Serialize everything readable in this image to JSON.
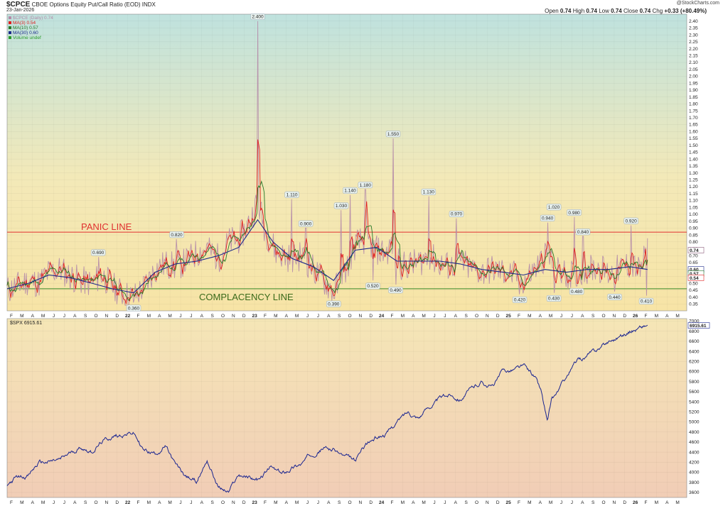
{
  "header": {
    "symbol": "$CPCE",
    "description": "CBOE Options Equity Put/Call Ratio (EOD)",
    "exchange": "INDX",
    "date": "23-Jan-2026",
    "copyright": "@StockCharts.com",
    "open_label": "Open",
    "open": "0.74",
    "high_label": "High",
    "high": "0.74",
    "low_label": "Low",
    "low": "0.74",
    "close_label": "Close",
    "close": "0.74",
    "chg_label": "Chg",
    "chg": "+0.33 (+80.49%)"
  },
  "chart_data": [
    {
      "type": "line",
      "title": "$CPCE CBOE Options Equity Put/Call Ratio (EOD)",
      "ylim": [
        0.3,
        2.45
      ],
      "y_ticks": [
        "0.35",
        "0.40",
        "0.45",
        "0.50",
        "0.55",
        "0.60",
        "0.65",
        "0.70",
        "0.75",
        "0.80",
        "0.85",
        "0.90",
        "0.95",
        "1.00",
        "1.05",
        "1.10",
        "1.15",
        "1.20",
        "1.25",
        "1.30",
        "1.35",
        "1.40",
        "1.45",
        "1.50",
        "1.55",
        "1.60",
        "1.65",
        "1.70",
        "1.75",
        "1.80",
        "1.85",
        "1.90",
        "1.95",
        "2.00",
        "2.05",
        "2.10",
        "2.15",
        "2.20",
        "2.25",
        "2.30",
        "2.35",
        "2.40"
      ],
      "x_ticks": [
        "F",
        "M",
        "A",
        "M",
        "J",
        "J",
        "A",
        "S",
        "O",
        "N",
        "D",
        "22",
        "F",
        "M",
        "A",
        "M",
        "J",
        "J",
        "A",
        "S",
        "O",
        "N",
        "D",
        "23",
        "F",
        "M",
        "A",
        "M",
        "J",
        "J",
        "A",
        "S",
        "O",
        "N",
        "D",
        "24",
        "F",
        "M",
        "A",
        "M",
        "J",
        "J",
        "A",
        "S",
        "O",
        "N",
        "D",
        "25",
        "F",
        "M",
        "A",
        "M",
        "J",
        "J",
        "A",
        "S",
        "O",
        "N",
        "D",
        "26",
        "F",
        "M",
        "A",
        "M"
      ],
      "x_range": [
        2021.0,
        2026.37
      ],
      "legend": [
        {
          "label": "$CPCE (Daily) 0.74",
          "color": "#b48aa8"
        },
        {
          "label": "MA(3) 0.54",
          "color": "#e02020"
        },
        {
          "label": "MA(10) 0.57",
          "color": "#2a7a2a"
        },
        {
          "label": "MA(30) 0.60",
          "color": "#1c2a8a"
        },
        {
          "label": "Volume undef",
          "color": "#2a9a2a"
        }
      ],
      "horizontal_lines": [
        {
          "name": "PANIC LINE",
          "value": 0.87,
          "color": "#e03030"
        },
        {
          "name": "COMPLACENCY LINE",
          "value": 0.46,
          "color": "#3a8a2a"
        }
      ],
      "annotations": [
        {
          "x": 2021.72,
          "y": 0.69,
          "label": "0.690"
        },
        {
          "x": 2022.0,
          "y": 0.36,
          "label": "0.360"
        },
        {
          "x": 2022.34,
          "y": 0.82,
          "label": "0.820"
        },
        {
          "x": 2022.98,
          "y": 2.4,
          "label": "2.400"
        },
        {
          "x": 2023.25,
          "y": 1.11,
          "label": "1.110"
        },
        {
          "x": 2023.36,
          "y": 0.9,
          "label": "0.900"
        },
        {
          "x": 2023.58,
          "y": 0.39,
          "label": "0.390"
        },
        {
          "x": 2023.64,
          "y": 1.03,
          "label": "1.030"
        },
        {
          "x": 2023.71,
          "y": 1.14,
          "label": "1.140"
        },
        {
          "x": 2023.83,
          "y": 1.18,
          "label": "1.180"
        },
        {
          "x": 2023.89,
          "y": 0.52,
          "label": "0.520"
        },
        {
          "x": 2024.05,
          "y": 1.55,
          "label": "1.550"
        },
        {
          "x": 2024.07,
          "y": 0.49,
          "label": "0.490"
        },
        {
          "x": 2024.33,
          "y": 1.13,
          "label": "1.130"
        },
        {
          "x": 2024.55,
          "y": 0.97,
          "label": "0.970"
        },
        {
          "x": 2025.05,
          "y": 0.42,
          "label": "0.420"
        },
        {
          "x": 2025.27,
          "y": 0.94,
          "label": "0.940"
        },
        {
          "x": 2025.32,
          "y": 1.02,
          "label": "1.020"
        },
        {
          "x": 2025.32,
          "y": 0.43,
          "label": "0.430"
        },
        {
          "x": 2025.48,
          "y": 0.98,
          "label": "0.980"
        },
        {
          "x": 2025.5,
          "y": 0.48,
          "label": "0.480"
        },
        {
          "x": 2025.55,
          "y": 0.84,
          "label": "0.840"
        },
        {
          "x": 2025.8,
          "y": 0.44,
          "label": "0.440"
        },
        {
          "x": 2025.93,
          "y": 0.92,
          "label": "0.920"
        },
        {
          "x": 2026.05,
          "y": 0.41,
          "label": "0.410"
        }
      ],
      "last_markers": [
        {
          "value": 0.74,
          "label": "0.74",
          "bg": "#ffffff",
          "color": "#8a5a7a"
        },
        {
          "value": 0.6,
          "label": "0.60",
          "bg": "#ffffff",
          "color": "#1c2a8a"
        },
        {
          "value": 0.57,
          "label": "0.57",
          "bg": "#ffffff",
          "color": "#2a7a2a"
        },
        {
          "value": 0.54,
          "label": "0.54",
          "bg": "#ffffff",
          "color": "#e02020"
        }
      ],
      "series": [
        {
          "name": "$CPCE (Daily)",
          "x": [
            2021.0,
            2021.08,
            2021.17,
            2021.25,
            2021.33,
            2021.42,
            2021.5,
            2021.58,
            2021.67,
            2021.75,
            2021.83,
            2021.92,
            2022.0,
            2022.08,
            2022.17,
            2022.25,
            2022.33,
            2022.42,
            2022.5,
            2022.58,
            2022.67,
            2022.75,
            2022.83,
            2022.92,
            2022.98,
            2023.04,
            2023.13,
            2023.25,
            2023.33,
            2023.42,
            2023.5,
            2023.58,
            2023.67,
            2023.75,
            2023.83,
            2023.92,
            2024.0,
            2024.05,
            2024.12,
            2024.25,
            2024.33,
            2024.42,
            2024.5,
            2024.58,
            2024.67,
            2024.75,
            2024.83,
            2024.92,
            2025.0,
            2025.08,
            2025.17,
            2025.27,
            2025.33,
            2025.42,
            2025.5,
            2025.58,
            2025.67,
            2025.75,
            2025.83,
            2025.93,
            2026.0,
            2026.06
          ],
          "values": [
            0.45,
            0.48,
            0.52,
            0.5,
            0.58,
            0.6,
            0.55,
            0.52,
            0.5,
            0.56,
            0.48,
            0.42,
            0.4,
            0.47,
            0.6,
            0.64,
            0.62,
            0.66,
            0.72,
            0.75,
            0.68,
            0.8,
            0.82,
            0.95,
            1.1,
            0.88,
            0.72,
            0.68,
            0.7,
            0.6,
            0.52,
            0.44,
            0.58,
            0.78,
            0.82,
            0.74,
            0.72,
            0.8,
            0.62,
            0.65,
            0.7,
            0.64,
            0.62,
            0.66,
            0.6,
            0.58,
            0.6,
            0.58,
            0.56,
            0.52,
            0.6,
            0.72,
            0.6,
            0.56,
            0.58,
            0.6,
            0.62,
            0.57,
            0.6,
            0.64,
            0.58,
            0.74
          ]
        },
        {
          "name": "MA(30)",
          "x": [
            2021.0,
            2021.17,
            2021.33,
            2021.5,
            2021.67,
            2021.83,
            2022.0,
            2022.17,
            2022.33,
            2022.5,
            2022.67,
            2022.83,
            2022.98,
            2023.1,
            2023.25,
            2023.42,
            2023.58,
            2023.75,
            2023.92,
            2024.08,
            2024.25,
            2024.42,
            2024.58,
            2024.75,
            2024.92,
            2025.08,
            2025.25,
            2025.42,
            2025.58,
            2025.75,
            2025.92,
            2026.06
          ],
          "values": [
            0.46,
            0.5,
            0.56,
            0.54,
            0.5,
            0.46,
            0.43,
            0.58,
            0.64,
            0.66,
            0.7,
            0.76,
            0.96,
            0.8,
            0.68,
            0.62,
            0.52,
            0.74,
            0.76,
            0.66,
            0.66,
            0.66,
            0.64,
            0.6,
            0.58,
            0.56,
            0.6,
            0.58,
            0.6,
            0.6,
            0.62,
            0.6
          ]
        }
      ]
    },
    {
      "type": "line",
      "title": "$SPX 6915.61",
      "ylim": [
        3500,
        7050
      ],
      "y_ticks": [
        "3600",
        "3800",
        "4000",
        "4200",
        "4400",
        "4600",
        "4800",
        "5000",
        "5200",
        "5400",
        "5600",
        "5800",
        "6000",
        "6200",
        "6400",
        "6600",
        "6800",
        "7000"
      ],
      "x_ticks": [
        "F",
        "M",
        "A",
        "M",
        "J",
        "J",
        "A",
        "S",
        "O",
        "N",
        "D",
        "22",
        "F",
        "M",
        "A",
        "M",
        "J",
        "J",
        "A",
        "S",
        "O",
        "N",
        "D",
        "23",
        "F",
        "M",
        "A",
        "M",
        "J",
        "J",
        "A",
        "S",
        "O",
        "N",
        "D",
        "24",
        "F",
        "M",
        "A",
        "M",
        "J",
        "J",
        "A",
        "S",
        "O",
        "N",
        "D",
        "25",
        "F",
        "M",
        "A",
        "M",
        "J",
        "J",
        "A",
        "S",
        "O",
        "N",
        "D",
        "26",
        "F",
        "M",
        "A",
        "M"
      ],
      "x_range": [
        2021.0,
        2026.37
      ],
      "last_marker": {
        "value": 6915.61,
        "label": "6915.61"
      },
      "series": [
        {
          "name": "$SPX",
          "x": [
            2021.0,
            2021.08,
            2021.17,
            2021.25,
            2021.33,
            2021.42,
            2021.5,
            2021.58,
            2021.67,
            2021.75,
            2021.83,
            2021.92,
            2022.0,
            2022.08,
            2022.17,
            2022.25,
            2022.33,
            2022.42,
            2022.5,
            2022.58,
            2022.67,
            2022.75,
            2022.83,
            2022.92,
            2023.0,
            2023.08,
            2023.17,
            2023.25,
            2023.33,
            2023.42,
            2023.5,
            2023.58,
            2023.67,
            2023.75,
            2023.83,
            2023.92,
            2024.0,
            2024.08,
            2024.17,
            2024.25,
            2024.33,
            2024.42,
            2024.5,
            2024.58,
            2024.67,
            2024.75,
            2024.83,
            2024.92,
            2025.0,
            2025.08,
            2025.17,
            2025.22,
            2025.27,
            2025.3,
            2025.33,
            2025.42,
            2025.5,
            2025.58,
            2025.67,
            2025.75,
            2025.83,
            2025.92,
            2026.0,
            2026.06
          ],
          "values": [
            3760,
            3900,
            3950,
            4180,
            4200,
            4240,
            4380,
            4500,
            4420,
            4600,
            4700,
            4760,
            4780,
            4430,
            4380,
            4520,
            4130,
            3900,
            3820,
            4250,
            3700,
            3600,
            3950,
            3900,
            3840,
            4100,
            3950,
            4100,
            4180,
            4400,
            4500,
            4450,
            4300,
            4200,
            4550,
            4700,
            4770,
            5000,
            5200,
            5100,
            5300,
            5450,
            5550,
            5480,
            5650,
            5800,
            5700,
            6000,
            6050,
            6100,
            5900,
            5600,
            4980,
            5400,
            5500,
            5900,
            6200,
            6300,
            6450,
            6600,
            6700,
            6800,
            6880,
            6915.61
          ]
        }
      ]
    }
  ],
  "overlay_labels": {
    "panic": "PANIC LINE",
    "complacency": "COMPLACENCY LINE",
    "spx_title": "$SPX 6915.61"
  }
}
